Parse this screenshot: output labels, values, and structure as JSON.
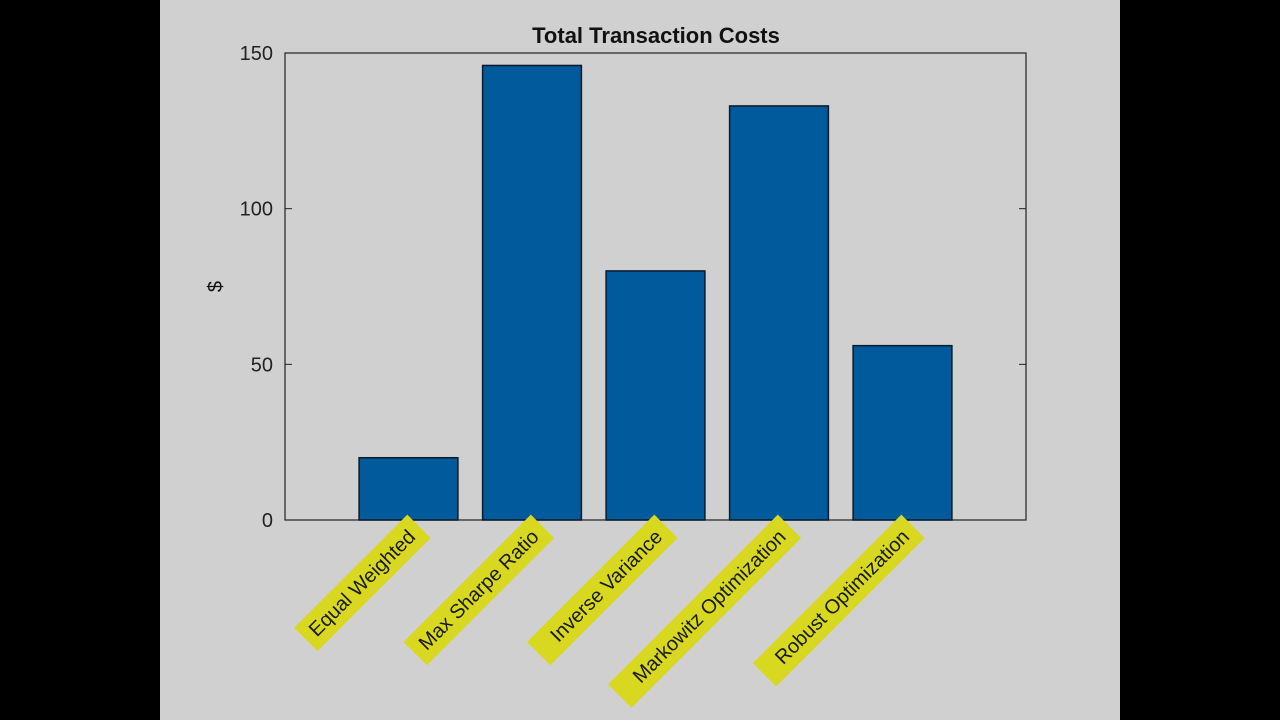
{
  "colors": {
    "frame": "#000000",
    "figure_bg": "#d0d0d0",
    "plot_bg": "#d0d0d0",
    "bar": "#005a9c",
    "bar_edge": "#0a1a2a",
    "highlight": "#d8d820",
    "axis": "#222222"
  },
  "chart_data": {
    "type": "bar",
    "title": "Total Transaction Costs",
    "xlabel": "",
    "ylabel": "$",
    "ylim": [
      0,
      150
    ],
    "yticks": [
      0,
      50,
      100,
      150
    ],
    "ytick_labels": [
      "0",
      "50",
      "100",
      "150"
    ],
    "categories": [
      "Equal Weighted",
      "Max Sharpe Ratio",
      "Inverse Variance",
      "Markowitz Optimization",
      "Robust Optimization"
    ],
    "values": [
      20,
      146,
      80,
      133,
      56
    ],
    "grid": false,
    "legend": "none"
  }
}
